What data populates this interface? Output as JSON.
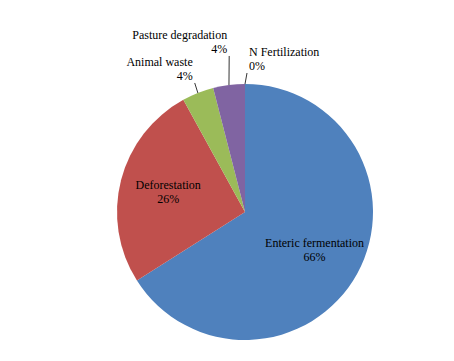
{
  "chart_data": {
    "type": "pie",
    "categories": [
      "Enteric fermentation",
      "Deforestation",
      "Animal waste",
      "Pasture degradation",
      "N Fertilization"
    ],
    "values": [
      66,
      26,
      4,
      4,
      0
    ],
    "value_labels": [
      "66%",
      "26%",
      "4%",
      "4%",
      "0%"
    ],
    "colors": [
      "#4f81bd",
      "#c0504d",
      "#9bbb59",
      "#8064a2",
      "#4bacc6"
    ],
    "data_labels": true
  }
}
